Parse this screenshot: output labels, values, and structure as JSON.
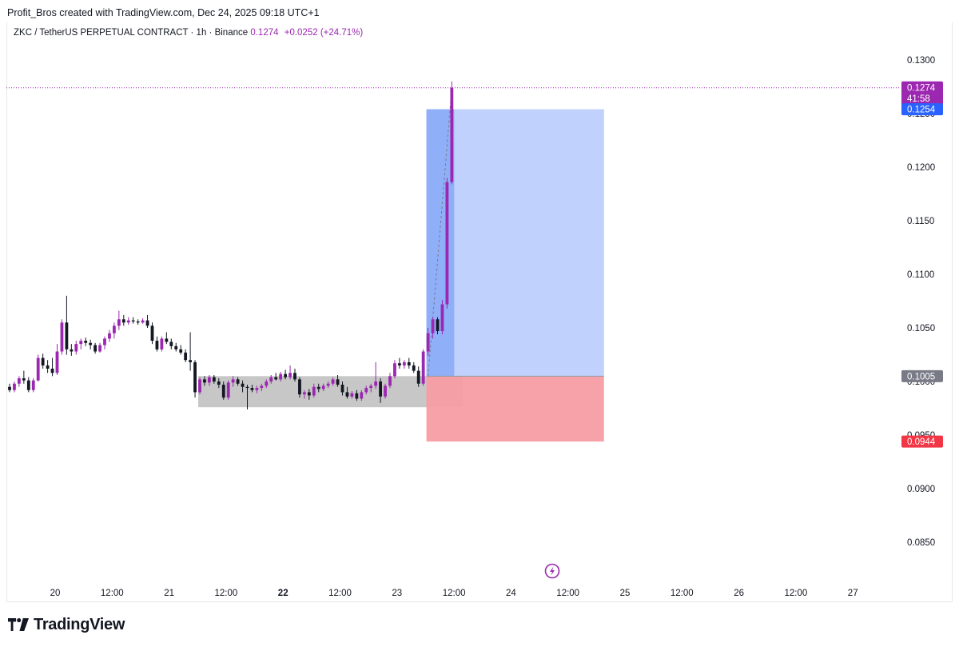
{
  "header": {
    "attribution": "Profit_Bros created with TradingView.com, Dec 24, 2025 09:18 UTC+1"
  },
  "legend": {
    "symbol": "ZKC / TetherUS PERPETUAL CONTRACT · 1h · Binance",
    "price": "0.1274",
    "change": "+0.0252 (+24.71%)"
  },
  "brand": {
    "name": "TradingView"
  },
  "colors": {
    "bull": "#9c27b0",
    "bear": "#131722",
    "profit_zone": "#bccffc",
    "profit_entry": "#89abf8",
    "loss_zone": "#f79da3",
    "range_box": "#bdbdbd",
    "label_price": "#9c27b0",
    "label_target": "#2962ff",
    "label_entry": "#787b86",
    "label_stop": "#f23645"
  },
  "chart_data": {
    "type": "candlestick",
    "symbol": "ZKC / TetherUS PERPETUAL CONTRACT",
    "interval": "1h",
    "exchange": "Binance",
    "ylim": [
      0.0815,
      0.1335
    ],
    "y_ticks": [
      "0.1300",
      "0.1250",
      "0.1200",
      "0.1150",
      "0.1100",
      "0.1050",
      "0.1000",
      "0.0950",
      "0.0900",
      "0.0850"
    ],
    "x_ticks": [
      {
        "label": "20",
        "bold": false
      },
      {
        "label": "12:00",
        "bold": false
      },
      {
        "label": "21",
        "bold": false
      },
      {
        "label": "12:00",
        "bold": false
      },
      {
        "label": "22",
        "bold": true
      },
      {
        "label": "12:00",
        "bold": false
      },
      {
        "label": "23",
        "bold": false
      },
      {
        "label": "12:00",
        "bold": false
      },
      {
        "label": "24",
        "bold": false
      },
      {
        "label": "12:00",
        "bold": false
      },
      {
        "label": "25",
        "bold": false
      },
      {
        "label": "12:00",
        "bold": false
      },
      {
        "label": "26",
        "bold": false
      },
      {
        "label": "12:00",
        "bold": false
      },
      {
        "label": "27",
        "bold": false
      }
    ],
    "candles_start": "Dec 19 20:00",
    "candles": [
      [
        0.0995,
        0.0998,
        0.099,
        0.0992
      ],
      [
        0.0992,
        0.1,
        0.099,
        0.0998
      ],
      [
        0.0998,
        0.1005,
        0.0995,
        0.1003
      ],
      [
        0.1003,
        0.101,
        0.0998,
        0.1001
      ],
      [
        0.1001,
        0.1004,
        0.099,
        0.0992
      ],
      [
        0.0992,
        0.1003,
        0.099,
        0.1001
      ],
      [
        0.1001,
        0.1025,
        0.1,
        0.1022
      ],
      [
        0.1022,
        0.1026,
        0.1012,
        0.1015
      ],
      [
        0.1015,
        0.102,
        0.1008,
        0.1012
      ],
      [
        0.1012,
        0.1022,
        0.1005,
        0.1008
      ],
      [
        0.1008,
        0.1035,
        0.1006,
        0.1028
      ],
      [
        0.1028,
        0.1058,
        0.1025,
        0.1055
      ],
      [
        0.1055,
        0.108,
        0.1025,
        0.103
      ],
      [
        0.103,
        0.1035,
        0.1024,
        0.1028
      ],
      [
        0.1028,
        0.1038,
        0.1025,
        0.1035
      ],
      [
        0.1035,
        0.104,
        0.103,
        0.1038
      ],
      [
        0.1038,
        0.1041,
        0.1033,
        0.1036
      ],
      [
        0.1036,
        0.1039,
        0.103,
        0.1034
      ],
      [
        0.1034,
        0.1036,
        0.1026,
        0.1028
      ],
      [
        0.1028,
        0.1036,
        0.1027,
        0.1034
      ],
      [
        0.1034,
        0.1042,
        0.103,
        0.104
      ],
      [
        0.104,
        0.1048,
        0.1037,
        0.1045
      ],
      [
        0.1045,
        0.1055,
        0.104,
        0.1052
      ],
      [
        0.1052,
        0.1066,
        0.1048,
        0.1058
      ],
      [
        0.1058,
        0.1062,
        0.1052,
        0.1055
      ],
      [
        0.1055,
        0.106,
        0.1053,
        0.1057
      ],
      [
        0.1057,
        0.106,
        0.1054,
        0.1056
      ],
      [
        0.1056,
        0.1058,
        0.1053,
        0.1055
      ],
      [
        0.1055,
        0.1059,
        0.1054,
        0.1057
      ],
      [
        0.1057,
        0.1062,
        0.105,
        0.1052
      ],
      [
        0.1052,
        0.1055,
        0.1035,
        0.1038
      ],
      [
        0.1038,
        0.1042,
        0.1028,
        0.103
      ],
      [
        0.103,
        0.1042,
        0.1028,
        0.104
      ],
      [
        0.104,
        0.1046,
        0.1035,
        0.1037
      ],
      [
        0.1037,
        0.104,
        0.103,
        0.1033
      ],
      [
        0.1033,
        0.1036,
        0.1028,
        0.103
      ],
      [
        0.103,
        0.1034,
        0.1025,
        0.1027
      ],
      [
        0.1027,
        0.103,
        0.1018,
        0.102
      ],
      [
        0.102,
        0.1046,
        0.101,
        0.1018
      ],
      [
        0.1018,
        0.102,
        0.0985,
        0.099
      ],
      [
        0.099,
        0.1004,
        0.0988,
        0.1002
      ],
      [
        0.1002,
        0.1005,
        0.0996,
        0.0999
      ],
      [
        0.0999,
        0.1006,
        0.0996,
        0.1004
      ],
      [
        0.1004,
        0.1006,
        0.0998,
        0.1
      ],
      [
        0.1,
        0.1003,
        0.0994,
        0.0997
      ],
      [
        0.0997,
        0.1,
        0.0983,
        0.0985
      ],
      [
        0.0985,
        0.1001,
        0.0983,
        0.0999
      ],
      [
        0.0999,
        0.1005,
        0.0995,
        0.1002
      ],
      [
        0.1002,
        0.1004,
        0.0996,
        0.0998
      ],
      [
        0.0998,
        0.1001,
        0.099,
        0.0995
      ],
      [
        0.0995,
        0.0997,
        0.0974,
        0.0994
      ],
      [
        0.0994,
        0.0997,
        0.099,
        0.0992
      ],
      [
        0.0992,
        0.0996,
        0.0989,
        0.0994
      ],
      [
        0.0994,
        0.0998,
        0.0991,
        0.0996
      ],
      [
        0.0996,
        0.1002,
        0.0994,
        0.1
      ],
      [
        0.1,
        0.1006,
        0.0998,
        0.1004
      ],
      [
        0.1004,
        0.1008,
        0.1001,
        0.1002
      ],
      [
        0.1002,
        0.1009,
        0.1,
        0.1007
      ],
      [
        0.1007,
        0.1011,
        0.1002,
        0.1004
      ],
      [
        0.1004,
        0.1015,
        0.1002,
        0.1008
      ],
      [
        0.1008,
        0.1012,
        0.1,
        0.1002
      ],
      [
        0.1002,
        0.1004,
        0.0985,
        0.0988
      ],
      [
        0.0988,
        0.0992,
        0.0984,
        0.099
      ],
      [
        0.099,
        0.0993,
        0.0983,
        0.0987
      ],
      [
        0.0987,
        0.0998,
        0.0985,
        0.0995
      ],
      [
        0.0995,
        0.0998,
        0.099,
        0.0993
      ],
      [
        0.0993,
        0.0998,
        0.0991,
        0.0996
      ],
      [
        0.0996,
        0.1,
        0.0994,
        0.0998
      ],
      [
        0.0998,
        0.1004,
        0.0996,
        0.1002
      ],
      [
        0.1002,
        0.1006,
        0.0995,
        0.0997
      ],
      [
        0.0997,
        0.1,
        0.0987,
        0.099
      ],
      [
        0.099,
        0.0995,
        0.0984,
        0.0986
      ],
      [
        0.0986,
        0.0991,
        0.0984,
        0.0989
      ],
      [
        0.0989,
        0.0992,
        0.0982,
        0.0984
      ],
      [
        0.0984,
        0.0992,
        0.0982,
        0.099
      ],
      [
        0.099,
        0.0996,
        0.0988,
        0.0994
      ],
      [
        0.0994,
        0.0998,
        0.099,
        0.0996
      ],
      [
        0.0996,
        0.1018,
        0.0993,
        0.1
      ],
      [
        0.1,
        0.1003,
        0.098,
        0.0986
      ],
      [
        0.0986,
        0.0998,
        0.0984,
        0.0996
      ],
      [
        0.0996,
        0.1008,
        0.0994,
        0.1005
      ],
      [
        0.1005,
        0.102,
        0.1003,
        0.1017
      ],
      [
        0.1017,
        0.1022,
        0.1012,
        0.1015
      ],
      [
        0.1015,
        0.102,
        0.1012,
        0.1018
      ],
      [
        0.1018,
        0.1022,
        0.1012,
        0.1015
      ],
      [
        0.1015,
        0.1018,
        0.1008,
        0.101
      ],
      [
        0.101,
        0.1014,
        0.0995,
        0.0998
      ],
      [
        0.0998,
        0.103,
        0.0996,
        0.1028
      ],
      [
        0.1028,
        0.105,
        0.1024,
        0.1045
      ],
      [
        0.1045,
        0.106,
        0.104,
        0.1058
      ],
      [
        0.1058,
        0.106,
        0.1044,
        0.1047
      ],
      [
        0.1047,
        0.1076,
        0.1044,
        0.1072
      ],
      [
        0.1072,
        0.119,
        0.1068,
        0.1186
      ],
      [
        0.1186,
        0.128,
        0.1184,
        0.1274
      ]
    ],
    "position": {
      "type": "long",
      "entry": 0.1005,
      "target": 0.1254,
      "stop": 0.0944,
      "start_candle": 88,
      "end_candle": 125
    },
    "range_box": {
      "top": 0.1005,
      "bottom": 0.0976,
      "start_candle": 40,
      "end_candle": 95
    },
    "price_labels": [
      {
        "text": "0.1274",
        "sub": "41:58",
        "value": 0.1274,
        "kind": "current"
      },
      {
        "text": "0.1254",
        "value": 0.1254,
        "kind": "target"
      },
      {
        "text": "0.1005",
        "value": 0.1005,
        "kind": "entry"
      },
      {
        "text": "0.0944",
        "value": 0.0944,
        "kind": "stop"
      }
    ]
  }
}
